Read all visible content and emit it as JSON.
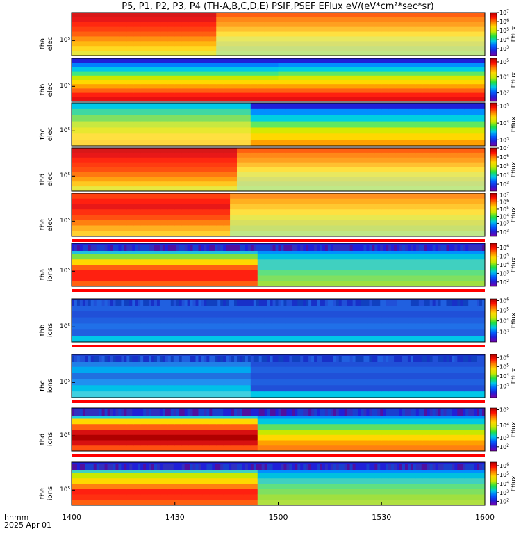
{
  "title": "P5, P1, P2, P3, P4 (TH-A,B,C,D,E) PSIF,PSEF EFlux eV/(eV*cm²*sec*sr)",
  "footer": {
    "line1": "hhmm",
    "line2": "2025 Apr 01"
  },
  "chart_data": {
    "type": "heatmap",
    "x_ticks": [
      "1400",
      "1430",
      "1500",
      "1530",
      "1600"
    ],
    "x_range_hhmm": [
      "1400",
      "1600"
    ],
    "colorbar_label": "Eflux",
    "colormap": [
      "#7a00a8",
      "#2020d8",
      "#0060ff",
      "#00c8e8",
      "#20e040",
      "#c8e800",
      "#ffd800",
      "#ff8000",
      "#ff1000",
      "#b00000"
    ],
    "panels": [
      {
        "probe": "tha",
        "species": "elec",
        "ytick": "10⁵",
        "cbar": [
          {
            "b": "7",
            "f": 1.0
          },
          {
            "b": "6",
            "f": 0.79
          },
          {
            "b": "5",
            "f": 0.58
          },
          {
            "b": "4",
            "f": 0.37
          },
          {
            "b": "3",
            "f": 0.16
          }
        ],
        "stripes": [
          "#d81818",
          "#e81818",
          "#ff2810",
          "#ff4010",
          "#ff6010",
          "#ff9010",
          "#ffb810",
          "#ffd820",
          "#e8e840"
        ],
        "late": [
          "#ff6010",
          "#ff8818",
          "#ffa020",
          "#ffc030",
          "#ffe040",
          "#e8e860",
          "#d8e070",
          "#c8e080",
          "#c0e888"
        ],
        "front": 0.35,
        "topBand": null,
        "bottomBar": false
      },
      {
        "probe": "thb",
        "species": "elec",
        "ytick": "10⁵",
        "cbar": [
          {
            "b": "5",
            "f": 0.92
          },
          {
            "b": "4",
            "f": 0.57
          },
          {
            "b": "3",
            "f": 0.2
          }
        ],
        "stripes": [
          "#2020d8",
          "#0080ff",
          "#00c8e8",
          "#40e880",
          "#c8e800",
          "#ffd800",
          "#ffa000",
          "#ff6010",
          "#ff2010",
          "#e81010"
        ],
        "late": [
          "#2020d8",
          "#0090ff",
          "#00d0e0",
          "#60e860",
          "#d8e800",
          "#ffd800",
          "#ffa000",
          "#ff6010",
          "#ff2010",
          "#e81010"
        ],
        "front": 0.5,
        "topBand": null,
        "bottomBar": false
      },
      {
        "probe": "thc",
        "species": "elec",
        "ytick": "10⁵",
        "cbar": [
          {
            "b": "5",
            "f": 0.93
          },
          {
            "b": "4",
            "f": 0.53
          },
          {
            "b": "3",
            "f": 0.14
          }
        ],
        "stripes": [
          "#00c8e8",
          "#40d8a0",
          "#80e060",
          "#c8e840",
          "#e8e830",
          "#ffe040",
          "#ffd840"
        ],
        "late": [
          "#2020d8",
          "#0090ff",
          "#00d0e0",
          "#60e860",
          "#d8e800",
          "#ffd800",
          "#ffa000",
          "#ff6010"
        ],
        "front": 0.42,
        "topBand": null,
        "bottomBar": false,
        "split": 0.42
      },
      {
        "probe": "thd",
        "species": "elec",
        "ytick": "10⁵",
        "cbar": [
          {
            "b": "7",
            "f": 1.0
          },
          {
            "b": "6",
            "f": 0.79
          },
          {
            "b": "5",
            "f": 0.58
          },
          {
            "b": "4",
            "f": 0.37
          },
          {
            "b": "3",
            "f": 0.16
          }
        ],
        "stripes": [
          "#d81818",
          "#e81818",
          "#ff2810",
          "#ff3c10",
          "#ff5010",
          "#ff7810",
          "#ffa010",
          "#ffc820",
          "#e8e840"
        ],
        "late": [
          "#ff6010",
          "#ff8818",
          "#ffa020",
          "#ffc030",
          "#ffe040",
          "#e8e860",
          "#d8e070",
          "#c8e080",
          "#c0e888"
        ],
        "front": 0.4,
        "topBand": null,
        "bottomBar": false
      },
      {
        "probe": "the",
        "species": "elec",
        "ytick": "10⁵",
        "cbar": [
          {
            "b": "7",
            "f": 0.96
          },
          {
            "b": "6",
            "f": 0.8
          },
          {
            "b": "5",
            "f": 0.63
          },
          {
            "b": "4",
            "f": 0.46
          },
          {
            "b": "3",
            "f": 0.3
          },
          {
            "b": "3",
            "f": 0.1
          }
        ],
        "stripes": [
          "#ff4010",
          "#ff2010",
          "#e81818",
          "#ff3010",
          "#ff5010",
          "#ff8010",
          "#ffb020",
          "#ffd030"
        ],
        "late": [
          "#ff9020",
          "#ffb020",
          "#ffc830",
          "#ffe040",
          "#e8e850",
          "#d8e060",
          "#c8e070",
          "#c0e888"
        ],
        "front": 0.38,
        "topBand": null,
        "bottomBar": true
      },
      {
        "probe": "tha",
        "species": "ions",
        "ytick": "10⁵",
        "cbar": [
          {
            "b": "6",
            "f": 0.9
          },
          {
            "b": "5",
            "f": 0.7
          },
          {
            "b": "4",
            "f": 0.5
          },
          {
            "b": "3",
            "f": 0.3
          },
          {
            "b": "2",
            "f": 0.1
          }
        ],
        "stripes": [
          "#2020d8",
          "#20c0e0",
          "#80e040",
          "#ffd800",
          "#ff6010",
          "#ff2010",
          "#ff2010",
          "#ff6010"
        ],
        "late": [
          "#2020d8",
          "#0090ff",
          "#00c0e0",
          "#40d0c0",
          "#40d0c0",
          "#60e080",
          "#80e060",
          "#a0e040"
        ],
        "front": 0.45,
        "topBand": "noise",
        "bottomBar": true
      },
      {
        "probe": "thb",
        "species": "ions",
        "ytick": "10⁵",
        "cbar": [
          {
            "b": "6",
            "f": 0.96
          },
          {
            "b": "5",
            "f": 0.73
          },
          {
            "b": "4",
            "f": 0.49
          },
          {
            "b": "3",
            "f": 0.23
          }
        ],
        "stripes": [
          "#1830c8",
          "#2060e0",
          "#2050d8",
          "#2060e0",
          "#2070e8",
          "#2060e0",
          "#00c8e8"
        ],
        "late": [
          "#1830c8",
          "#2060e0",
          "#2050d8",
          "#2060e0",
          "#2070e8",
          "#2060e0",
          "#00c8e8"
        ],
        "front": 0.5,
        "topBand": "blue-noise",
        "bottomBar": true
      },
      {
        "probe": "thc",
        "species": "ions",
        "ytick": "10⁵",
        "cbar": [
          {
            "b": "6",
            "f": 0.93
          },
          {
            "b": "5",
            "f": 0.72
          },
          {
            "b": "4",
            "f": 0.5
          },
          {
            "b": "3",
            "f": 0.27
          }
        ],
        "stripes": [
          "#2040d0",
          "#2080e8",
          "#00a8f0",
          "#2070e0",
          "#2090f0",
          "#00c0e8",
          "#40d0e0"
        ],
        "late": [
          "#1830c8",
          "#2050d8",
          "#2060e0",
          "#2050d8",
          "#2060e0",
          "#2050d8",
          "#00c8e8"
        ],
        "front": 0.42,
        "topBand": "blue-noise",
        "bottomBar": true,
        "split": 0.42
      },
      {
        "probe": "thd",
        "species": "ions",
        "ytick": "10⁵",
        "cbar": [
          {
            "b": "5",
            "f": 0.96
          },
          {
            "b": "4",
            "f": 0.6
          },
          {
            "b": "3",
            "f": 0.31
          },
          {
            "b": "2",
            "f": 0.1
          }
        ],
        "stripes": [
          "#2020d8",
          "#20d0e0",
          "#ffd800",
          "#ff6010",
          "#d81010",
          "#b00000",
          "#d81010",
          "#ff5010"
        ],
        "late": [
          "#2020d8",
          "#0090ff",
          "#00c8e0",
          "#60e060",
          "#c8e800",
          "#ffd800",
          "#ffa000",
          "#ff8010"
        ],
        "front": 0.45,
        "topBand": "noise",
        "bottomBar": true
      },
      {
        "probe": "the",
        "species": "ions",
        "ytick": "10⁵",
        "cbar": [
          {
            "b": "6",
            "f": 0.92
          },
          {
            "b": "5",
            "f": 0.71
          },
          {
            "b": "4",
            "f": 0.5
          },
          {
            "b": "3",
            "f": 0.29
          },
          {
            "b": "2",
            "f": 0.09
          }
        ],
        "stripes": [
          "#2020d8",
          "#40d0c0",
          "#c8e800",
          "#ffd800",
          "#ff8010",
          "#ff2010",
          "#ff3010",
          "#ff6010"
        ],
        "late": [
          "#2020d8",
          "#0090ff",
          "#00c0e0",
          "#40d0c0",
          "#60e080",
          "#80e060",
          "#a0e040",
          "#b0e040"
        ],
        "front": 0.45,
        "topBand": "noise",
        "bottomBar": false
      }
    ]
  }
}
